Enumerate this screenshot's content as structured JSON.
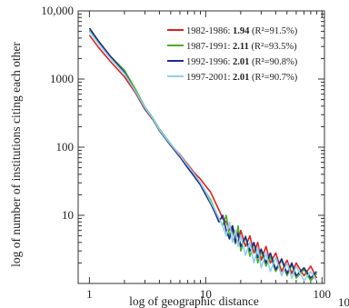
{
  "chart_data": {
    "type": "line",
    "xscale": "log",
    "yscale": "log",
    "xlim": [
      0.8,
      105
    ],
    "ylim": [
      1,
      10000
    ],
    "xlabel": "log of geographic distance",
    "ylabel": "log of number of institutions citing each other",
    "x_ticks": [
      {
        "value": 1,
        "label": "1"
      },
      {
        "value": 10,
        "label": "10"
      },
      {
        "value": 100,
        "label": "100"
      }
    ],
    "y_ticks": [
      {
        "value": 10,
        "label": "10"
      },
      {
        "value": 100,
        "label": "100"
      },
      {
        "value": 1000,
        "label": "1000"
      },
      {
        "value": 10000,
        "label": "10,000"
      }
    ],
    "cut_off_label": "10",
    "legend_position": "top-right",
    "series": [
      {
        "period": "1982-1986: ",
        "exponent": "1.94",
        "r2": " (R²=91.5%)",
        "color": "#e02020",
        "points": [
          [
            1,
            4400
          ],
          [
            1.2,
            2900
          ],
          [
            1.5,
            1850
          ],
          [
            2,
            1080
          ],
          [
            2.5,
            620
          ],
          [
            3,
            360
          ],
          [
            3.5,
            255
          ],
          [
            4,
            180
          ],
          [
            5,
            108
          ],
          [
            6,
            78
          ],
          [
            7,
            56
          ],
          [
            8,
            42
          ],
          [
            9,
            34
          ],
          [
            10,
            27
          ],
          [
            11,
            22
          ],
          [
            12,
            16
          ],
          [
            13,
            12
          ],
          [
            14,
            9
          ],
          [
            15,
            8
          ],
          [
            16,
            6
          ],
          [
            17,
            7
          ],
          [
            18,
            5
          ],
          [
            19,
            4
          ],
          [
            20,
            6
          ],
          [
            22,
            3.5
          ],
          [
            24,
            5
          ],
          [
            26,
            2.8
          ],
          [
            28,
            4
          ],
          [
            30,
            2.2
          ],
          [
            33,
            3.5
          ],
          [
            36,
            2
          ],
          [
            40,
            2.8
          ],
          [
            45,
            1.5
          ],
          [
            50,
            2.2
          ],
          [
            55,
            1.4
          ],
          [
            60,
            2
          ],
          [
            70,
            1.3
          ],
          [
            80,
            1.8
          ],
          [
            90,
            1.2
          ]
        ]
      },
      {
        "period": "1987-1991: ",
        "exponent": "2.11",
        "r2": " (R²=93.5%)",
        "color": "#4caf2a",
        "points": [
          [
            1,
            5200
          ],
          [
            1.2,
            3500
          ],
          [
            1.5,
            2200
          ],
          [
            2,
            1350
          ],
          [
            2.5,
            700
          ],
          [
            3,
            390
          ],
          [
            3.5,
            270
          ],
          [
            4,
            185
          ],
          [
            5,
            112
          ],
          [
            6,
            75
          ],
          [
            7,
            52
          ],
          [
            8,
            38
          ],
          [
            9,
            30
          ],
          [
            10,
            22
          ],
          [
            11,
            17
          ],
          [
            12,
            12
          ],
          [
            13,
            9
          ],
          [
            14,
            7
          ],
          [
            15,
            10
          ],
          [
            16,
            5
          ],
          [
            17,
            6
          ],
          [
            18,
            3.8
          ],
          [
            19,
            7
          ],
          [
            20,
            3
          ],
          [
            22,
            5
          ],
          [
            24,
            2.5
          ],
          [
            26,
            4
          ],
          [
            28,
            2
          ],
          [
            30,
            3
          ],
          [
            33,
            1.8
          ],
          [
            36,
            2.5
          ],
          [
            40,
            1.5
          ],
          [
            45,
            2.2
          ],
          [
            50,
            1.3
          ],
          [
            55,
            1.9
          ],
          [
            60,
            1.2
          ],
          [
            70,
            1.6
          ],
          [
            80,
            1.1
          ],
          [
            90,
            1.4
          ]
        ]
      },
      {
        "period": "1992-1996: ",
        "exponent": "2.01",
        "r2": " (R²=90.8%)",
        "color": "#1f2a8a",
        "points": [
          [
            1,
            5600
          ],
          [
            1.2,
            3600
          ],
          [
            1.5,
            2200
          ],
          [
            2,
            1250
          ],
          [
            2.5,
            640
          ],
          [
            3,
            370
          ],
          [
            3.5,
            260
          ],
          [
            4,
            175
          ],
          [
            5,
            106
          ],
          [
            6,
            72
          ],
          [
            7,
            50
          ],
          [
            8,
            37
          ],
          [
            9,
            28
          ],
          [
            10,
            20
          ],
          [
            11,
            15
          ],
          [
            12,
            11
          ],
          [
            13,
            8
          ],
          [
            14,
            10
          ],
          [
            15,
            6
          ],
          [
            16,
            4.5
          ],
          [
            17,
            7
          ],
          [
            18,
            4
          ],
          [
            19,
            5.5
          ],
          [
            20,
            3.5
          ],
          [
            22,
            4.8
          ],
          [
            24,
            3
          ],
          [
            26,
            4
          ],
          [
            28,
            2.4
          ],
          [
            30,
            3.2
          ],
          [
            33,
            2
          ],
          [
            36,
            2.8
          ],
          [
            40,
            1.6
          ],
          [
            45,
            2.3
          ],
          [
            50,
            1.4
          ],
          [
            55,
            2
          ],
          [
            60,
            1.3
          ],
          [
            70,
            1.7
          ],
          [
            80,
            1.2
          ],
          [
            90,
            1.5
          ]
        ]
      },
      {
        "period": "1997-2001: ",
        "exponent": "2.01",
        "r2": " (R²=90.7%)",
        "color": "#8ed0ea",
        "points": [
          [
            1,
            5000
          ],
          [
            1.2,
            3300
          ],
          [
            1.5,
            2050
          ],
          [
            2,
            1200
          ],
          [
            2.5,
            650
          ],
          [
            3,
            380
          ],
          [
            3.5,
            265
          ],
          [
            4,
            180
          ],
          [
            5,
            110
          ],
          [
            6,
            76
          ],
          [
            7,
            54
          ],
          [
            8,
            40
          ],
          [
            9,
            30
          ],
          [
            10,
            22
          ],
          [
            11,
            16
          ],
          [
            12,
            12
          ],
          [
            13,
            9
          ],
          [
            14,
            7
          ],
          [
            15,
            5
          ],
          [
            16,
            8
          ],
          [
            17,
            4
          ],
          [
            18,
            6
          ],
          [
            19,
            3.5
          ],
          [
            20,
            5
          ],
          [
            22,
            2.6
          ],
          [
            24,
            4
          ],
          [
            26,
            2
          ],
          [
            28,
            3.4
          ],
          [
            30,
            1.7
          ],
          [
            33,
            2.8
          ],
          [
            36,
            1.5
          ],
          [
            40,
            2.4
          ],
          [
            45,
            1.3
          ],
          [
            50,
            2
          ],
          [
            55,
            1.2
          ],
          [
            60,
            1.8
          ],
          [
            70,
            1.1
          ],
          [
            80,
            1.5
          ],
          [
            90,
            1.1
          ]
        ]
      }
    ]
  }
}
